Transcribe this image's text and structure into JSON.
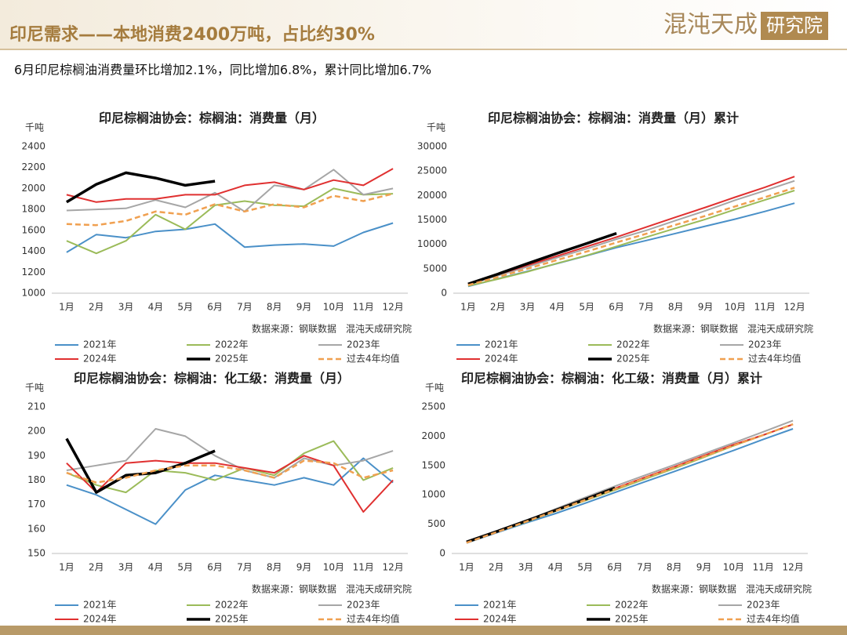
{
  "header": {
    "title": "印尼需求——本地消费2400万吨，占比约30%",
    "logo": "混沌天成",
    "logo_sub": "研究院"
  },
  "subtitle": "6月印尼棕榈油消费量环比增加2.1%，同比增加6.8%，累计同比增加6.7%",
  "chart_data": [
    {
      "type": "line",
      "title": "印尼棕榈油协会：棕榈油：消费量（月）",
      "y_label": "千吨",
      "source": "数据来源：钢联数据　混沌天成研究院",
      "categories": [
        "1月",
        "2月",
        "3月",
        "4月",
        "5月",
        "6月",
        "7月",
        "8月",
        "9月",
        "10月",
        "11月",
        "12月"
      ],
      "ylim": [
        1000,
        2400
      ],
      "yticks": [
        1000,
        1200,
        1400,
        1600,
        1800,
        2000,
        2200,
        2400
      ],
      "series": [
        {
          "name": "2021年",
          "color": "#4a90c8",
          "line_style": "solid",
          "values": [
            1390,
            1560,
            1530,
            1590,
            1610,
            1660,
            1440,
            1460,
            1470,
            1450,
            1580,
            1670
          ]
        },
        {
          "name": "2022年",
          "color": "#9bbb59",
          "line_style": "solid",
          "values": [
            1500,
            1380,
            1500,
            1750,
            1610,
            1840,
            1880,
            1840,
            1830,
            2000,
            1940,
            1950
          ]
        },
        {
          "name": "2023年",
          "color": "#a6a6a6",
          "line_style": "solid",
          "values": [
            1790,
            1800,
            1810,
            1890,
            1820,
            1960,
            1780,
            2030,
            1990,
            2180,
            1940,
            2000
          ]
        },
        {
          "name": "2024年",
          "color": "#e03030",
          "line_style": "solid",
          "values": [
            1940,
            1870,
            1900,
            1900,
            1940,
            1940,
            2030,
            2060,
            1990,
            2080,
            2030,
            2190
          ]
        },
        {
          "name": "2025年",
          "color": "#000000",
          "line_style": "bold",
          "values": [
            1870,
            2040,
            2150,
            2100,
            2030,
            2070,
            null,
            null,
            null,
            null,
            null,
            null
          ]
        },
        {
          "name": "过去4年均值",
          "color": "#f0a050",
          "line_style": "dashed",
          "values": [
            1660,
            1650,
            1690,
            1780,
            1750,
            1850,
            1780,
            1850,
            1820,
            1930,
            1880,
            1950
          ]
        }
      ]
    },
    {
      "type": "line",
      "title": "印尼棕榈油协会：棕榈油：消费量（月）累计",
      "y_label": "千吨",
      "source": "数据来源：钢联数据　混沌天成研究院",
      "categories": [
        "1月",
        "2月",
        "3月",
        "4月",
        "5月",
        "6月",
        "7月",
        "8月",
        "9月",
        "10月",
        "11月",
        "12月"
      ],
      "ylim": [
        0,
        30000
      ],
      "yticks": [
        0,
        5000,
        10000,
        15000,
        20000,
        25000,
        30000
      ],
      "series": [
        {
          "name": "2021年",
          "color": "#4a90c8",
          "line_style": "solid",
          "values": [
            1390,
            2950,
            4480,
            6070,
            7680,
            9340,
            10780,
            12240,
            13710,
            15160,
            16740,
            18410
          ]
        },
        {
          "name": "2022年",
          "color": "#9bbb59",
          "line_style": "solid",
          "values": [
            1500,
            2880,
            4380,
            6130,
            7740,
            9580,
            11460,
            13300,
            15130,
            17130,
            19070,
            21020
          ]
        },
        {
          "name": "2023年",
          "color": "#a6a6a6",
          "line_style": "solid",
          "values": [
            1790,
            3590,
            5400,
            7290,
            9110,
            11070,
            12850,
            14880,
            16870,
            19050,
            20990,
            22990
          ]
        },
        {
          "name": "2024年",
          "color": "#e03030",
          "line_style": "solid",
          "values": [
            1940,
            3810,
            5710,
            7610,
            9550,
            11490,
            13520,
            15580,
            17570,
            19650,
            21680,
            23870
          ]
        },
        {
          "name": "2025年",
          "color": "#000000",
          "line_style": "bold",
          "values": [
            1870,
            3910,
            6060,
            8160,
            10190,
            12260,
            null,
            null,
            null,
            null,
            null,
            null
          ]
        },
        {
          "name": "过去4年均值",
          "color": "#f0a050",
          "line_style": "dashed",
          "values": [
            1660,
            3310,
            5000,
            6780,
            8530,
            10380,
            12160,
            14010,
            15830,
            17760,
            19640,
            21590
          ]
        }
      ]
    },
    {
      "type": "line",
      "title": "印尼棕榈油协会：棕榈油：化工级：消费量（月）",
      "y_label": "千吨",
      "source": "数据来源：钢联数据　混沌天成研究院",
      "categories": [
        "1月",
        "2月",
        "3月",
        "4月",
        "5月",
        "6月",
        "7月",
        "8月",
        "9月",
        "10月",
        "11月",
        "12月"
      ],
      "ylim": [
        150,
        210
      ],
      "yticks": [
        150,
        160,
        170,
        180,
        190,
        200,
        210
      ],
      "series": [
        {
          "name": "2021年",
          "color": "#4a90c8",
          "line_style": "solid",
          "values": [
            178,
            174,
            168,
            162,
            176,
            182,
            180,
            178,
            181,
            178,
            189,
            179
          ]
        },
        {
          "name": "2022年",
          "color": "#9bbb59",
          "line_style": "solid",
          "values": [
            183,
            178,
            175,
            184,
            183,
            180,
            185,
            182,
            191,
            196,
            180,
            185
          ]
        },
        {
          "name": "2023年",
          "color": "#a6a6a6",
          "line_style": "solid",
          "values": [
            184,
            186,
            188,
            201,
            198,
            190,
            184,
            181,
            189,
            186,
            188,
            192
          ]
        },
        {
          "name": "2024年",
          "color": "#e03030",
          "line_style": "solid",
          "values": [
            187,
            175,
            187,
            188,
            187,
            187,
            185,
            183,
            190,
            186,
            167,
            180
          ]
        },
        {
          "name": "2025年",
          "color": "#000000",
          "line_style": "bold",
          "values": [
            197,
            175,
            182,
            183,
            187,
            192,
            null,
            null,
            null,
            null,
            null,
            null
          ]
        },
        {
          "name": "过去4年均值",
          "color": "#f0a050",
          "line_style": "dashed",
          "values": [
            183,
            179,
            181,
            184,
            186,
            186,
            184,
            181,
            188,
            187,
            181,
            184
          ]
        }
      ]
    },
    {
      "type": "line",
      "title": "印尼棕榈油协会：棕榈油：化工级：消费量（月）累计",
      "y_label": "千吨",
      "source": "数据来源：钢联数据　混沌天成研究院",
      "categories": [
        "1月",
        "2月",
        "3月",
        "4月",
        "5月",
        "6月",
        "7月",
        "8月",
        "9月",
        "10月",
        "11月",
        "12月"
      ],
      "ylim": [
        0,
        2500
      ],
      "yticks": [
        0,
        500,
        1000,
        1500,
        2000,
        2500
      ],
      "series": [
        {
          "name": "2021年",
          "color": "#4a90c8",
          "line_style": "solid",
          "values": [
            178,
            352,
            520,
            682,
            858,
            1040,
            1220,
            1398,
            1579,
            1757,
            1946,
            2125
          ]
        },
        {
          "name": "2022年",
          "color": "#9bbb59",
          "line_style": "solid",
          "values": [
            183,
            361,
            536,
            720,
            903,
            1083,
            1268,
            1450,
            1641,
            1837,
            2017,
            2202
          ]
        },
        {
          "name": "2023年",
          "color": "#a6a6a6",
          "line_style": "solid",
          "values": [
            184,
            370,
            558,
            759,
            957,
            1147,
            1331,
            1512,
            1701,
            1887,
            2075,
            2267
          ]
        },
        {
          "name": "2024年",
          "color": "#e03030",
          "line_style": "solid",
          "values": [
            187,
            362,
            549,
            737,
            924,
            1111,
            1296,
            1479,
            1669,
            1855,
            2022,
            2202
          ]
        },
        {
          "name": "2025年",
          "color": "#000000",
          "line_style": "bold",
          "values": [
            197,
            372,
            554,
            737,
            924,
            1116,
            null,
            null,
            null,
            null,
            null,
            null
          ]
        },
        {
          "name": "过去4年均值",
          "color": "#f0a050",
          "line_style": "dashed",
          "values": [
            183,
            362,
            543,
            727,
            913,
            1099,
            1283,
            1464,
            1652,
            1839,
            2020,
            2204
          ]
        }
      ]
    }
  ]
}
